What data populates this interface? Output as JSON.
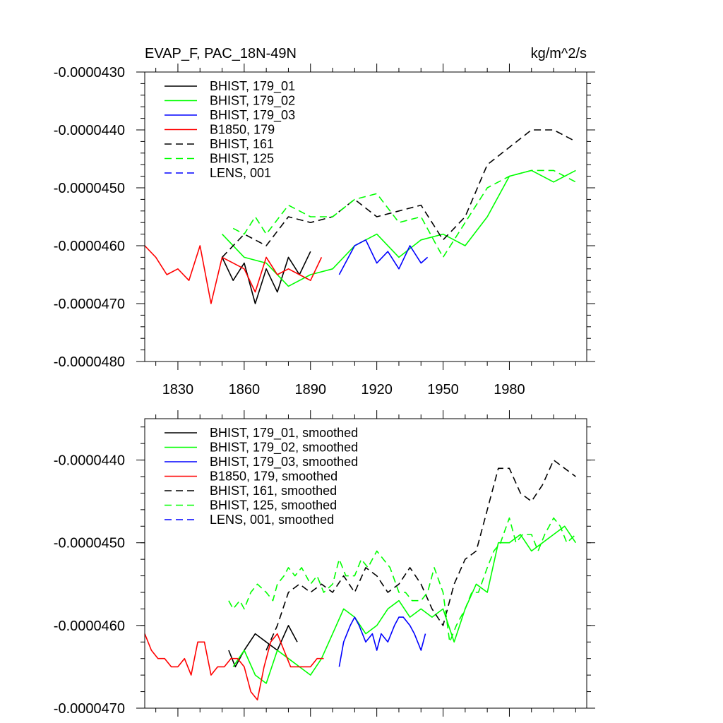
{
  "chart_data": [
    {
      "type": "line",
      "title": "EVAP_F, PAC_18N-49N",
      "units_label": "kg/m^2/s",
      "xlabel": "",
      "ylabel": "",
      "xlim": [
        1815,
        2015
      ],
      "ylim": [
        -4.8e-05,
        -4.3e-05
      ],
      "x_ticks": [
        1830,
        1860,
        1890,
        1920,
        1950,
        1980
      ],
      "y_ticks": [
        -4.3e-05,
        -4.4e-05,
        -4.5e-05,
        -4.6e-05,
        -4.7e-05,
        -4.8e-05
      ],
      "y_tick_labels": [
        "-0.0000430",
        "-0.0000440",
        "-0.0000450",
        "-0.0000460",
        "-0.0000470",
        "-0.0000480"
      ],
      "legend_position": "top-left",
      "grid": false,
      "series": [
        {
          "name": "BHIST, 179_01",
          "color": "#000000",
          "dash": "solid",
          "x": [
            1850,
            1855,
            1860,
            1865,
            1870,
            1875,
            1880,
            1885,
            1890
          ],
          "y": [
            -4.62e-05,
            -4.66e-05,
            -4.63e-05,
            -4.7e-05,
            -4.64e-05,
            -4.68e-05,
            -4.62e-05,
            -4.65e-05,
            -4.61e-05
          ]
        },
        {
          "name": "BHIST, 179_02",
          "color": "#00ff00",
          "dash": "solid",
          "x": [
            1850,
            1860,
            1870,
            1880,
            1890,
            1900,
            1910,
            1920,
            1930,
            1940,
            1950,
            1960,
            1970,
            1980,
            1990,
            2000,
            2010
          ],
          "y": [
            -4.58e-05,
            -4.62e-05,
            -4.63e-05,
            -4.67e-05,
            -4.65e-05,
            -4.64e-05,
            -4.6e-05,
            -4.58e-05,
            -4.62e-05,
            -4.59e-05,
            -4.58e-05,
            -4.6e-05,
            -4.55e-05,
            -4.48e-05,
            -4.47e-05,
            -4.49e-05,
            -4.47e-05
          ]
        },
        {
          "name": "BHIST, 179_03",
          "color": "#0000ff",
          "dash": "solid",
          "x": [
            1903,
            1910,
            1915,
            1920,
            1925,
            1930,
            1935,
            1940,
            1943
          ],
          "y": [
            -4.65e-05,
            -4.6e-05,
            -4.59e-05,
            -4.63e-05,
            -4.61e-05,
            -4.64e-05,
            -4.6e-05,
            -4.63e-05,
            -4.62e-05
          ]
        },
        {
          "name": "B1850, 179",
          "color": "#ff0000",
          "dash": "solid",
          "x": [
            1815,
            1820,
            1825,
            1830,
            1835,
            1840,
            1845,
            1850,
            1855,
            1860,
            1865,
            1870,
            1875,
            1880,
            1885,
            1890,
            1895
          ],
          "y": [
            -4.6e-05,
            -4.62e-05,
            -4.65e-05,
            -4.64e-05,
            -4.66e-05,
            -4.6e-05,
            -4.7e-05,
            -4.62e-05,
            -4.63e-05,
            -4.64e-05,
            -4.68e-05,
            -4.62e-05,
            -4.65e-05,
            -4.64e-05,
            -4.65e-05,
            -4.66e-05,
            -4.62e-05
          ]
        },
        {
          "name": "BHIST, 161",
          "color": "#000000",
          "dash": "dashed",
          "x": [
            1850,
            1860,
            1870,
            1880,
            1890,
            1900,
            1910,
            1920,
            1930,
            1940,
            1950,
            1960,
            1970,
            1980,
            1990,
            2000,
            2010
          ],
          "y": [
            -4.62e-05,
            -4.58e-05,
            -4.6e-05,
            -4.55e-05,
            -4.56e-05,
            -4.55e-05,
            -4.52e-05,
            -4.55e-05,
            -4.54e-05,
            -4.53e-05,
            -4.59e-05,
            -4.55e-05,
            -4.46e-05,
            -4.43e-05,
            -4.4e-05,
            -4.4e-05,
            -4.42e-05
          ]
        },
        {
          "name": "BHIST, 125",
          "color": "#00ff00",
          "dash": "dashed",
          "x": [
            1855,
            1860,
            1865,
            1870,
            1880,
            1890,
            1900,
            1910,
            1920,
            1930,
            1940,
            1950,
            1960,
            1970,
            1980,
            1990,
            2000,
            2010
          ],
          "y": [
            -4.57e-05,
            -4.58e-05,
            -4.55e-05,
            -4.58e-05,
            -4.53e-05,
            -4.55e-05,
            -4.55e-05,
            -4.52e-05,
            -4.51e-05,
            -4.56e-05,
            -4.55e-05,
            -4.62e-05,
            -4.56e-05,
            -4.5e-05,
            -4.48e-05,
            -4.47e-05,
            -4.47e-05,
            -4.49e-05
          ]
        },
        {
          "name": "LENS, 001",
          "color": "#0000ff",
          "dash": "dashed",
          "x": [],
          "y": []
        }
      ]
    },
    {
      "type": "line",
      "title": "",
      "xlabel": "",
      "ylabel": "",
      "xlim": [
        1815,
        2015
      ],
      "ylim": [
        -4.7e-05,
        -4.35e-05
      ],
      "x_ticks": [
        1830,
        1860,
        1890,
        1920,
        1950,
        1980
      ],
      "y_ticks": [
        -4.4e-05,
        -4.5e-05,
        -4.6e-05,
        -4.7e-05
      ],
      "y_tick_labels": [
        "-0.0000440",
        "-0.0000450",
        "-0.0000460",
        "-0.0000470"
      ],
      "legend_position": "top-left",
      "grid": false,
      "series": [
        {
          "name": "BHIST, 179_01, smoothed",
          "color": "#000000",
          "dash": "solid",
          "x": [
            1853,
            1856,
            1860,
            1865,
            1870,
            1875,
            1880,
            1884
          ],
          "y": [
            -4.63e-05,
            -4.65e-05,
            -4.63e-05,
            -4.61e-05,
            -4.62e-05,
            -4.63e-05,
            -4.6e-05,
            -4.62e-05
          ]
        },
        {
          "name": "BHIST, 179_02, smoothed",
          "color": "#00ff00",
          "dash": "solid",
          "x": [
            1855,
            1860,
            1865,
            1870,
            1875,
            1880,
            1885,
            1890,
            1895,
            1900,
            1905,
            1910,
            1915,
            1920,
            1925,
            1930,
            1935,
            1940,
            1945,
            1950,
            1955,
            1960,
            1965,
            1970,
            1975,
            1980,
            1985,
            1990,
            1995,
            2000,
            2005,
            2010
          ],
          "y": [
            -4.65e-05,
            -4.63e-05,
            -4.66e-05,
            -4.67e-05,
            -4.63e-05,
            -4.64e-05,
            -4.65e-05,
            -4.66e-05,
            -4.64e-05,
            -4.61e-05,
            -4.58e-05,
            -4.59e-05,
            -4.61e-05,
            -4.6e-05,
            -4.58e-05,
            -4.57e-05,
            -4.59e-05,
            -4.58e-05,
            -4.59e-05,
            -4.58e-05,
            -4.62e-05,
            -4.58e-05,
            -4.55e-05,
            -4.56e-05,
            -4.5e-05,
            -4.5e-05,
            -4.49e-05,
            -4.51e-05,
            -4.5e-05,
            -4.49e-05,
            -4.48e-05,
            -4.5e-05
          ]
        },
        {
          "name": "BHIST, 179_03, smoothed",
          "color": "#0000ff",
          "dash": "solid",
          "x": [
            1903,
            1905,
            1908,
            1910,
            1912,
            1915,
            1918,
            1920,
            1922,
            1925,
            1928,
            1930,
            1932,
            1935,
            1937,
            1940,
            1942
          ],
          "y": [
            -4.65e-05,
            -4.62e-05,
            -4.6e-05,
            -4.59e-05,
            -4.6e-05,
            -4.62e-05,
            -4.61e-05,
            -4.63e-05,
            -4.61e-05,
            -4.62e-05,
            -4.6e-05,
            -4.59e-05,
            -4.59e-05,
            -4.6e-05,
            -4.61e-05,
            -4.63e-05,
            -4.61e-05
          ]
        },
        {
          "name": "B1850, 179, smoothed",
          "color": "#ff0000",
          "dash": "solid",
          "x": [
            1815,
            1818,
            1821,
            1824,
            1827,
            1830,
            1833,
            1836,
            1839,
            1842,
            1845,
            1848,
            1851,
            1854,
            1857,
            1860,
            1863,
            1866,
            1869,
            1872,
            1875,
            1878,
            1881,
            1884,
            1887,
            1890,
            1893,
            1896
          ],
          "y": [
            -4.61e-05,
            -4.63e-05,
            -4.64e-05,
            -4.64e-05,
            -4.65e-05,
            -4.65e-05,
            -4.64e-05,
            -4.66e-05,
            -4.62e-05,
            -4.62e-05,
            -4.66e-05,
            -4.65e-05,
            -4.65e-05,
            -4.64e-05,
            -4.64e-05,
            -4.65e-05,
            -4.68e-05,
            -4.69e-05,
            -4.65e-05,
            -4.62e-05,
            -4.61e-05,
            -4.63e-05,
            -4.65e-05,
            -4.65e-05,
            -4.65e-05,
            -4.65e-05,
            -4.64e-05,
            -4.64e-05
          ]
        },
        {
          "name": "BHIST, 161, smoothed",
          "color": "#000000",
          "dash": "dashed",
          "x": [
            1870,
            1875,
            1880,
            1885,
            1890,
            1895,
            1900,
            1905,
            1910,
            1915,
            1920,
            1925,
            1930,
            1935,
            1940,
            1945,
            1950,
            1955,
            1960,
            1965,
            1970,
            1975,
            1980,
            1985,
            1990,
            1995,
            2000,
            2005,
            2010
          ],
          "y": [
            -4.63e-05,
            -4.6e-05,
            -4.56e-05,
            -4.55e-05,
            -4.56e-05,
            -4.55e-05,
            -4.56e-05,
            -4.54e-05,
            -4.56e-05,
            -4.53e-05,
            -4.54e-05,
            -4.56e-05,
            -4.55e-05,
            -4.53e-05,
            -4.55e-05,
            -4.58e-05,
            -4.6e-05,
            -4.55e-05,
            -4.52e-05,
            -4.51e-05,
            -4.46e-05,
            -4.41e-05,
            -4.41e-05,
            -4.44e-05,
            -4.45e-05,
            -4.43e-05,
            -4.4e-05,
            -4.41e-05,
            -4.42e-05
          ]
        },
        {
          "name": "BHIST, 125, smoothed",
          "color": "#00ff00",
          "dash": "dashed",
          "x": [
            1853,
            1855,
            1858,
            1860,
            1863,
            1866,
            1870,
            1873,
            1875,
            1878,
            1880,
            1883,
            1886,
            1890,
            1893,
            1896,
            1900,
            1903,
            1906,
            1910,
            1913,
            1916,
            1920,
            1923,
            1926,
            1930,
            1933,
            1936,
            1940,
            1943,
            1946,
            1950,
            1953,
            1956,
            1960,
            1963,
            1966,
            1970,
            1973,
            1976,
            1980,
            1983,
            1986,
            1990,
            1993,
            1996,
            2000,
            2003,
            2006,
            2010
          ],
          "y": [
            -4.57e-05,
            -4.58e-05,
            -4.57e-05,
            -4.58e-05,
            -4.56e-05,
            -4.55e-05,
            -4.56e-05,
            -4.57e-05,
            -4.55e-05,
            -4.54e-05,
            -4.53e-05,
            -4.54e-05,
            -4.53e-05,
            -4.55e-05,
            -4.54e-05,
            -4.56e-05,
            -4.55e-05,
            -4.52e-05,
            -4.54e-05,
            -4.54e-05,
            -4.52e-05,
            -4.53e-05,
            -4.51e-05,
            -4.52e-05,
            -4.53e-05,
            -4.56e-05,
            -4.56e-05,
            -4.57e-05,
            -4.57e-05,
            -4.56e-05,
            -4.53e-05,
            -4.56e-05,
            -4.62e-05,
            -4.6e-05,
            -4.58e-05,
            -4.56e-05,
            -4.56e-05,
            -4.53e-05,
            -4.51e-05,
            -4.5e-05,
            -4.47e-05,
            -4.5e-05,
            -4.49e-05,
            -4.49e-05,
            -4.51e-05,
            -4.49e-05,
            -4.47e-05,
            -4.48e-05,
            -4.5e-05,
            -4.49e-05
          ]
        },
        {
          "name": "LENS, 001, smoothed",
          "color": "#0000ff",
          "dash": "dashed",
          "x": [],
          "y": []
        }
      ]
    }
  ]
}
